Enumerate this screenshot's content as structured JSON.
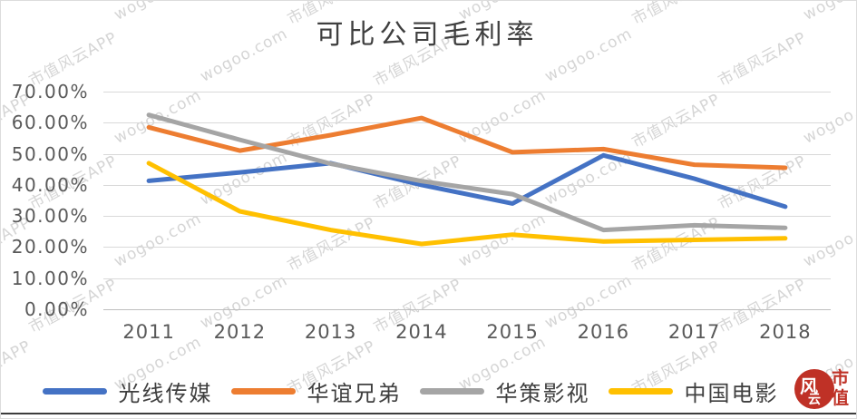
{
  "title": "可比公司毛利率",
  "watermarks": {
    "brand": "市值风云APP",
    "site": "wogoo.com"
  },
  "logo": {
    "circle_char": "风",
    "circle_sub_char": "云",
    "side_char_top": "市",
    "side_char_bottom": "值",
    "red": "#bf3126"
  },
  "chart_data": {
    "type": "line",
    "title": "可比公司毛利率",
    "categories": [
      "2011",
      "2012",
      "2013",
      "2014",
      "2015",
      "2016",
      "2017",
      "2018"
    ],
    "series": [
      {
        "name": "光线传媒",
        "color": "#4472C4",
        "values": [
          41.3,
          44.0,
          47.0,
          40.0,
          34.0,
          49.5,
          42.0,
          33.0
        ]
      },
      {
        "name": "华谊兄弟",
        "color": "#ED7D31",
        "values": [
          58.5,
          51.0,
          56.0,
          61.5,
          50.5,
          51.5,
          46.5,
          45.5
        ]
      },
      {
        "name": "华策影视",
        "color": "#A5A5A5",
        "values": [
          62.5,
          54.5,
          46.8,
          41.2,
          37.0,
          25.5,
          27.0,
          26.2
        ]
      },
      {
        "name": "中国电影",
        "color": "#FFC000",
        "values": [
          47.0,
          31.5,
          25.5,
          21.0,
          24.0,
          21.8,
          22.3,
          22.8
        ]
      }
    ],
    "y_ticks": [
      "70.00%",
      "60.00%",
      "50.00%",
      "40.00%",
      "30.00%",
      "20.00%",
      "10.00%",
      "0.00%"
    ],
    "ylim": [
      0,
      70
    ],
    "xlabel": "",
    "ylabel": "",
    "grid": true,
    "legend_position": "bottom",
    "line_width": 5,
    "gridline_color": "#d9d9d9",
    "label_color": "#595959"
  }
}
